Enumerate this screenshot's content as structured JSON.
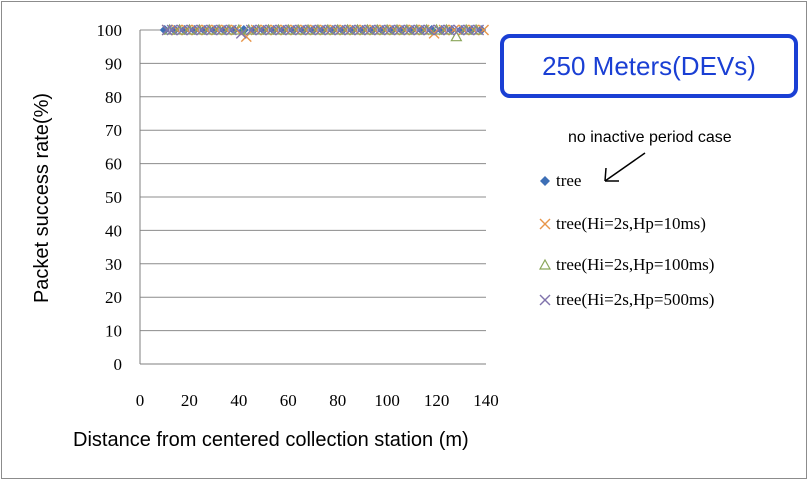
{
  "chart_data": {
    "type": "scatter",
    "xlabel": "Distance from centered collection station (m)",
    "ylabel": "Packet success rate(%)",
    "xlim": [
      0,
      140
    ],
    "ylim": [
      0,
      100
    ],
    "xticks": [
      "0",
      "20",
      "40",
      "60",
      "80",
      "100",
      "120",
      "140"
    ],
    "yticks": [
      "0",
      "10",
      "20",
      "30",
      "40",
      "50",
      "60",
      "70",
      "80",
      "90",
      "100"
    ],
    "grid": "horizontal",
    "legend_position": "right",
    "series": [
      {
        "name": "tree",
        "marker": "diamond",
        "color": "#3d6fb6",
        "x": [
          10,
          14,
          18,
          22,
          26,
          30,
          34,
          38,
          42,
          46,
          50,
          54,
          58,
          62,
          66,
          70,
          74,
          78,
          82,
          86,
          90,
          94,
          98,
          102,
          106,
          110,
          114,
          118,
          122,
          126,
          130,
          134,
          138
        ],
        "y": [
          100,
          100,
          100,
          100,
          100,
          100,
          100,
          100,
          100,
          100,
          100,
          100,
          100,
          100,
          100,
          100,
          100,
          100,
          100,
          100,
          100,
          100,
          100,
          100,
          100,
          100,
          100,
          100,
          100,
          100,
          100,
          100,
          100
        ]
      },
      {
        "name": "tree(Hi=2s,Hp=10ms)",
        "marker": "x",
        "color": "#e8964a",
        "x": [
          11,
          15,
          19,
          23,
          27,
          31,
          35,
          39,
          43,
          47,
          51,
          55,
          59,
          63,
          67,
          71,
          75,
          79,
          83,
          87,
          91,
          95,
          99,
          103,
          107,
          111,
          115,
          119,
          123,
          127,
          131,
          135,
          139
        ],
        "y": [
          100,
          100,
          100,
          100,
          100,
          100,
          100,
          100,
          98,
          100,
          100,
          100,
          100,
          100,
          100,
          100,
          100,
          100,
          100,
          100,
          100,
          100,
          100,
          100,
          100,
          100,
          100,
          99,
          100,
          100,
          100,
          100,
          100
        ]
      },
      {
        "name": "tree(Hi=2s,Hp=100ms)",
        "marker": "triangle",
        "color": "#8aa65a",
        "x": [
          12,
          16,
          20,
          24,
          28,
          32,
          36,
          40,
          44,
          48,
          52,
          56,
          60,
          64,
          68,
          72,
          76,
          80,
          84,
          88,
          92,
          96,
          100,
          104,
          108,
          112,
          116,
          120,
          124,
          128,
          132,
          136
        ],
        "y": [
          100,
          100,
          100,
          100,
          100,
          100,
          100,
          100,
          100,
          100,
          100,
          100,
          100,
          100,
          100,
          100,
          100,
          100,
          100,
          100,
          100,
          100,
          100,
          100,
          100,
          100,
          100,
          100,
          100,
          98,
          100,
          100
        ]
      },
      {
        "name": "tree(Hi=2s,Hp=500ms)",
        "marker": "x",
        "color": "#8073ac",
        "x": [
          11,
          13,
          17,
          21,
          25,
          29,
          33,
          37,
          41,
          45,
          49,
          53,
          57,
          61,
          65,
          69,
          73,
          77,
          81,
          85,
          89,
          93,
          97,
          101,
          105,
          109,
          113,
          117,
          121,
          125,
          129,
          133,
          137
        ],
        "y": [
          100,
          100,
          100,
          100,
          100,
          100,
          100,
          100,
          99,
          100,
          100,
          100,
          100,
          100,
          100,
          100,
          100,
          100,
          100,
          100,
          100,
          100,
          100,
          100,
          100,
          100,
          100,
          100,
          100,
          100,
          100,
          100,
          100
        ]
      }
    ]
  },
  "annotations": {
    "banner": "250 Meters(DEVs)",
    "note": "no inactive period case"
  }
}
